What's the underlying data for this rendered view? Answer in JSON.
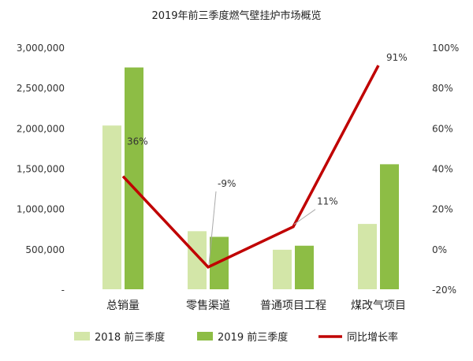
{
  "chart_data": {
    "type": "bar",
    "title": "2019年前三季度燃气壁挂炉市场概览",
    "categories": [
      "总销量",
      "零售渠道",
      "普通项目工程",
      "煤改气项目"
    ],
    "series": [
      {
        "name": "2018 前三季度",
        "type": "bar",
        "axis": "left",
        "color": "#d3e6a8",
        "values": [
          2030000,
          720000,
          490000,
          810000
        ]
      },
      {
        "name": "2019 前三季度",
        "type": "bar",
        "axis": "left",
        "color": "#8dbd45",
        "values": [
          2750000,
          650000,
          540000,
          1550000
        ]
      },
      {
        "name": "同比增长率",
        "type": "line",
        "axis": "right",
        "color": "#c00000",
        "values": [
          36,
          -9,
          11,
          91
        ],
        "labels": [
          "36%",
          "-9%",
          "11%",
          "91%"
        ]
      }
    ],
    "y_left": {
      "min": 0,
      "max": 3000000,
      "ticks": [
        "-",
        "500,000",
        "1,000,000",
        "1,500,000",
        "2,000,000",
        "2,500,000",
        "3,000,000"
      ]
    },
    "y_right": {
      "min": -20,
      "max": 100,
      "ticks": [
        "-20%",
        "0%",
        "20%",
        "40%",
        "60%",
        "80%",
        "100%"
      ]
    },
    "grid": false,
    "legend_position": "bottom"
  }
}
